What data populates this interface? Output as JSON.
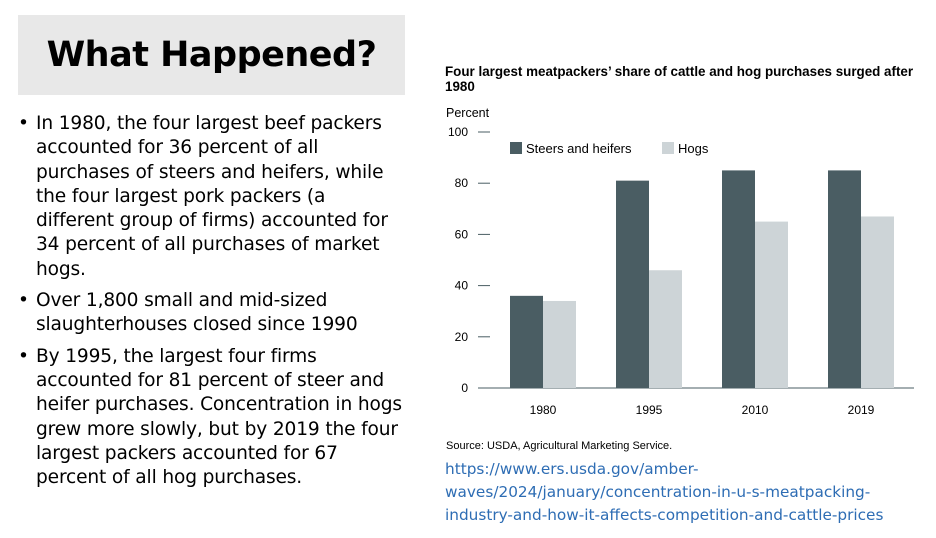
{
  "slide": {
    "title": "What Happened?",
    "bullet_marker": "•",
    "bullets": [
      "In 1980, the four largest beef packers accounted for 36 percent of all purchases of steers and heifers, while the four largest pork packers (a different group of firms) accounted for 34 percent of all purchases of market hogs.",
      "Over 1,800 small and mid-sized slaughterhouses closed since 1990",
      "By 1995, the largest four firms accounted for 81 percent of steer and heifer purchases. Concentration in hogs grew more slowly, but by 2019 the four largest packers accounted for 67 percent of all hog purchases."
    ],
    "source": "Source: USDA, Agricultural Marketing Service.",
    "link": "https://www.ers.usda.gov/amber-\nwaves/2024/january/concentration-in-u-s-meatpacking-\nindustry-and-how-it-affects-competition-and-cattle-prices"
  },
  "chart_data": {
    "type": "bar",
    "title": "Four largest meatpackers’ share of cattle and hog purchases surged after 1980",
    "ylabel": "Percent",
    "xlabel": "",
    "categories": [
      "1980",
      "1995",
      "2010",
      "2019"
    ],
    "series": [
      {
        "name": "Steers and heifers",
        "values": [
          36,
          81,
          85,
          85
        ],
        "color": "#4a5d63"
      },
      {
        "name": "Hogs",
        "values": [
          34,
          46,
          65,
          67
        ],
        "color": "#cdd4d7"
      }
    ],
    "ylim": [
      0,
      100
    ],
    "yticks": [
      0,
      20,
      40,
      60,
      80,
      100
    ],
    "grid": false,
    "legend_position": "top-left",
    "axis_color": "#4a5d63"
  }
}
